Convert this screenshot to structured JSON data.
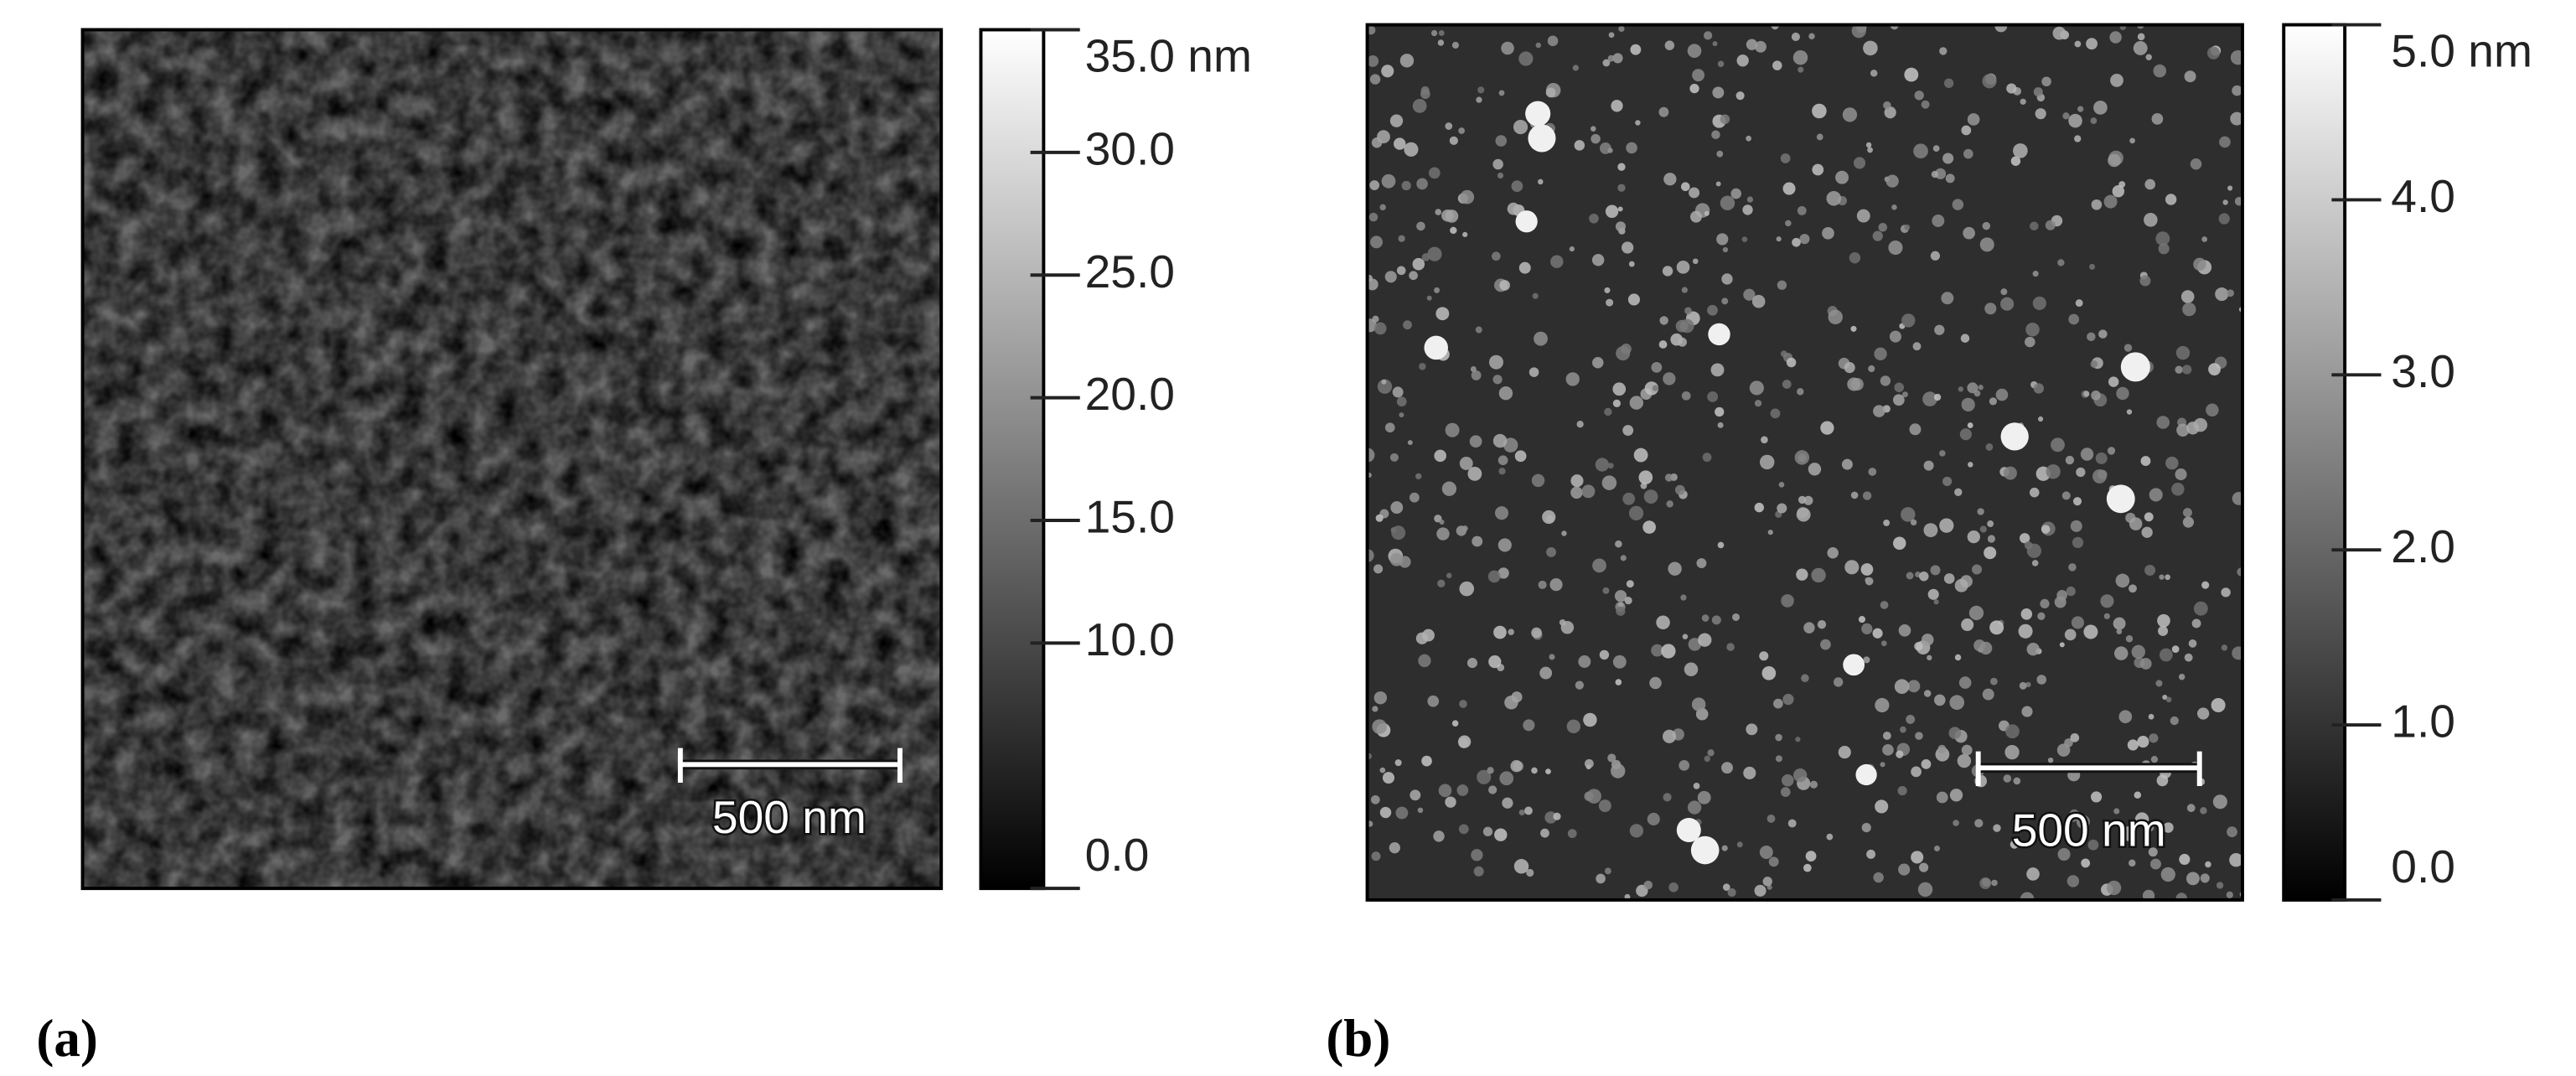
{
  "panels": [
    {
      "label": "(a)",
      "scale_bar": "500 nm",
      "colorbar": {
        "lim": [
          0,
          35
        ],
        "ticks": [
          {
            "value": 35,
            "label": "35.0 nm"
          },
          {
            "value": 30,
            "label": "30.0"
          },
          {
            "value": 25,
            "label": "25.0"
          },
          {
            "value": 20,
            "label": "20.0"
          },
          {
            "value": 15,
            "label": "15.0"
          },
          {
            "value": 10,
            "label": "10.0"
          },
          {
            "value": 0,
            "label": "0.0"
          }
        ]
      }
    },
    {
      "label": "(b)",
      "scale_bar": "500 nm",
      "colorbar": {
        "lim": [
          0,
          5
        ],
        "ticks": [
          {
            "value": 5,
            "label": "5.0 nm"
          },
          {
            "value": 4,
            "label": "4.0"
          },
          {
            "value": 3,
            "label": "3.0"
          },
          {
            "value": 2,
            "label": "2.0"
          },
          {
            "value": 1,
            "label": "1.0"
          },
          {
            "value": 0,
            "label": "0.0"
          }
        ]
      }
    }
  ]
}
